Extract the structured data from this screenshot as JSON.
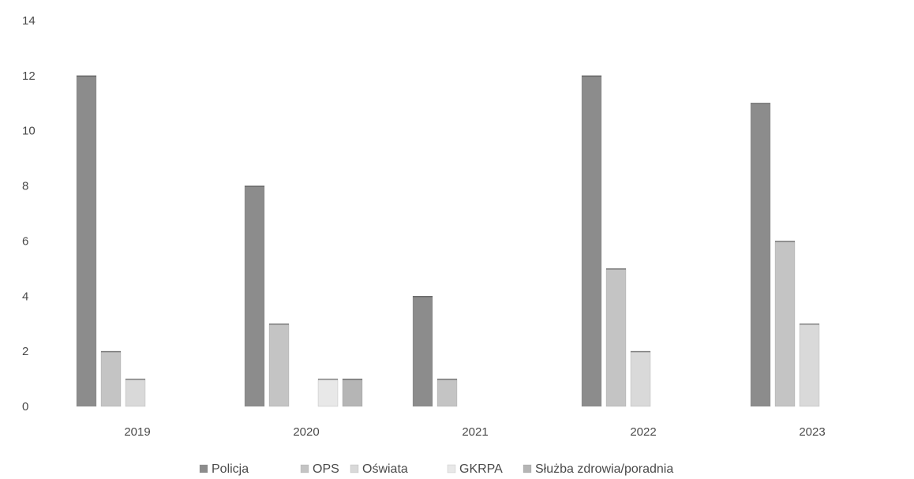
{
  "chart_data": {
    "type": "bar",
    "title": "",
    "xlabel": "",
    "ylabel": "",
    "categories": [
      "2019",
      "2020",
      "2021",
      "2022",
      "2023"
    ],
    "series": [
      {
        "name": "Policja",
        "values": [
          12,
          8,
          4,
          12,
          11
        ],
        "color": "#8c8c8c"
      },
      {
        "name": "OPS",
        "values": [
          2,
          3,
          1,
          5,
          6
        ],
        "color": "#c4c4c4"
      },
      {
        "name": "Oświata",
        "values": [
          1,
          0,
          0,
          2,
          3
        ],
        "color": "#d9d9d9"
      },
      {
        "name": "GKRPA",
        "values": [
          0,
          1,
          0,
          0,
          0
        ],
        "color": "#e8e8e8"
      },
      {
        "name": "Służba zdrowia/poradnia",
        "values": [
          0,
          1,
          0,
          0,
          0
        ],
        "color": "#b5b5b5"
      }
    ],
    "ylim": [
      0,
      14
    ],
    "yticks": [
      "0",
      "2",
      "4",
      "6",
      "8",
      "10",
      "12",
      "14"
    ],
    "grid": false,
    "legend_position": "bottom"
  }
}
